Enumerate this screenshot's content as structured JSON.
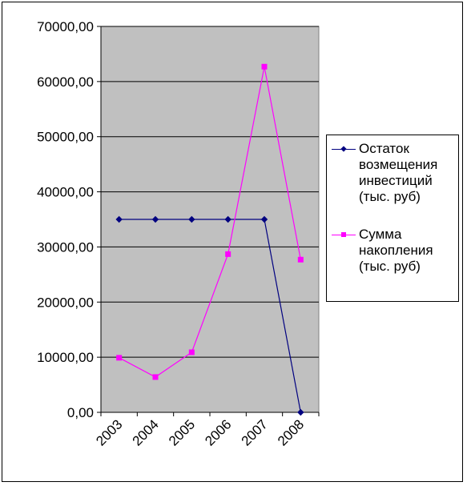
{
  "chart_data": {
    "type": "line",
    "categories": [
      "2003",
      "2004",
      "2005",
      "2006",
      "2007",
      "2008"
    ],
    "series": [
      {
        "name": "Остаток возмещения инвестиций (тыс. руб)",
        "values": [
          35000,
          35000,
          35000,
          35000,
          35000,
          0
        ],
        "color": "#000080",
        "marker": "diamond"
      },
      {
        "name": "Сумма накопления (тыс. руб)",
        "values": [
          9900,
          6400,
          10900,
          28700,
          62700,
          27700
        ],
        "color": "#FF00FF",
        "marker": "square"
      }
    ],
    "y_ticks": [
      "0,00",
      "10000,00",
      "20000,00",
      "30000,00",
      "40000,00",
      "50000,00",
      "60000,00",
      "70000,00"
    ],
    "ylim": [
      0,
      70000
    ],
    "y_step": 10000,
    "grid": "horizontal",
    "legend_placement": "right",
    "plot_background": "#C0C0C0",
    "title": "",
    "xlabel": "",
    "ylabel": ""
  }
}
